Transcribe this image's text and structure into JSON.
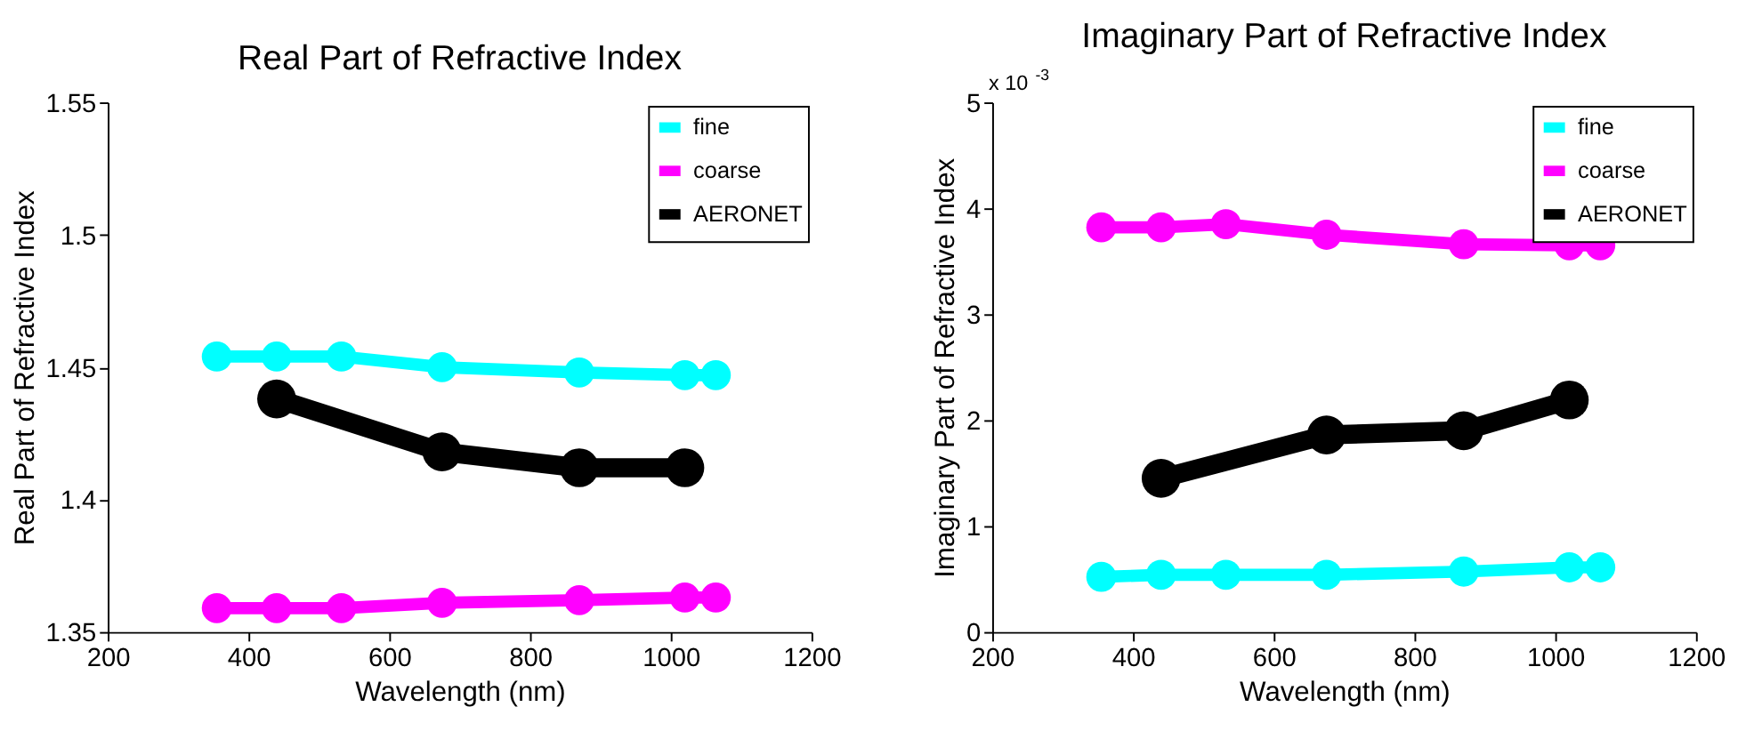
{
  "chart_data": [
    {
      "type": "line",
      "title": "Real Part of Refractive Index",
      "xlabel": "Wavelength  (nm)",
      "ylabel": "Real Part of Refractive Index",
      "xlim": [
        200,
        1200
      ],
      "xticks": [
        200,
        400,
        600,
        800,
        1000,
        1200
      ],
      "ylim": [
        1.35,
        1.55
      ],
      "yticks": [
        1.35,
        1.4,
        1.45,
        1.5,
        1.55
      ],
      "grid": false,
      "legend": "top right",
      "marker": "circle",
      "line_style": "solid",
      "series": [
        {
          "name": "fine",
          "color": "#00ffff",
          "x": [
            355,
            440,
            532,
            675,
            870,
            1020,
            1064
          ],
          "values": [
            1.454,
            1.454,
            1.454,
            1.45,
            1.448,
            1.447,
            1.447
          ]
        },
        {
          "name": "coarse",
          "color": "#ff00ff",
          "x": [
            355,
            440,
            532,
            675,
            870,
            1020,
            1064
          ],
          "values": [
            1.359,
            1.359,
            1.359,
            1.361,
            1.362,
            1.363,
            1.363
          ]
        },
        {
          "name": "AERONET",
          "color": "#000000",
          "x": [
            440,
            675,
            870,
            1020
          ],
          "values": [
            1.438,
            1.418,
            1.412,
            1.412
          ]
        }
      ]
    },
    {
      "type": "line",
      "title": "Imaginary Part of Refractive Index",
      "xlabel": "Wavelength  (nm)",
      "ylabel": "Imaginary Part of Refractive Index",
      "xlim": [
        200,
        1200
      ],
      "xticks": [
        200,
        400,
        600,
        800,
        1000,
        1200
      ],
      "ylim": [
        0,
        5
      ],
      "yticks": [
        0,
        1,
        2,
        3,
        4,
        5
      ],
      "grid": false,
      "legend": "top right",
      "marker": "circle",
      "line_style": "solid",
      "annotations": [
        "x 10$^{-3}$"
      ],
      "series": [
        {
          "name": "fine",
          "color": "#00ffff",
          "x": [
            355,
            440,
            532,
            675,
            870,
            1020,
            1064
          ],
          "values": [
            0.52,
            0.54,
            0.54,
            0.54,
            0.57,
            0.61,
            0.61
          ]
        },
        {
          "name": "coarse",
          "color": "#ff00ff",
          "x": [
            355,
            440,
            532,
            675,
            870,
            1020,
            1064
          ],
          "values": [
            3.82,
            3.82,
            3.85,
            3.75,
            3.66,
            3.65,
            3.65
          ]
        },
        {
          "name": "AERONET",
          "color": "#000000",
          "x": [
            440,
            675,
            870,
            1020
          ],
          "values": [
            1.45,
            1.86,
            1.9,
            2.19
          ]
        }
      ]
    }
  ]
}
